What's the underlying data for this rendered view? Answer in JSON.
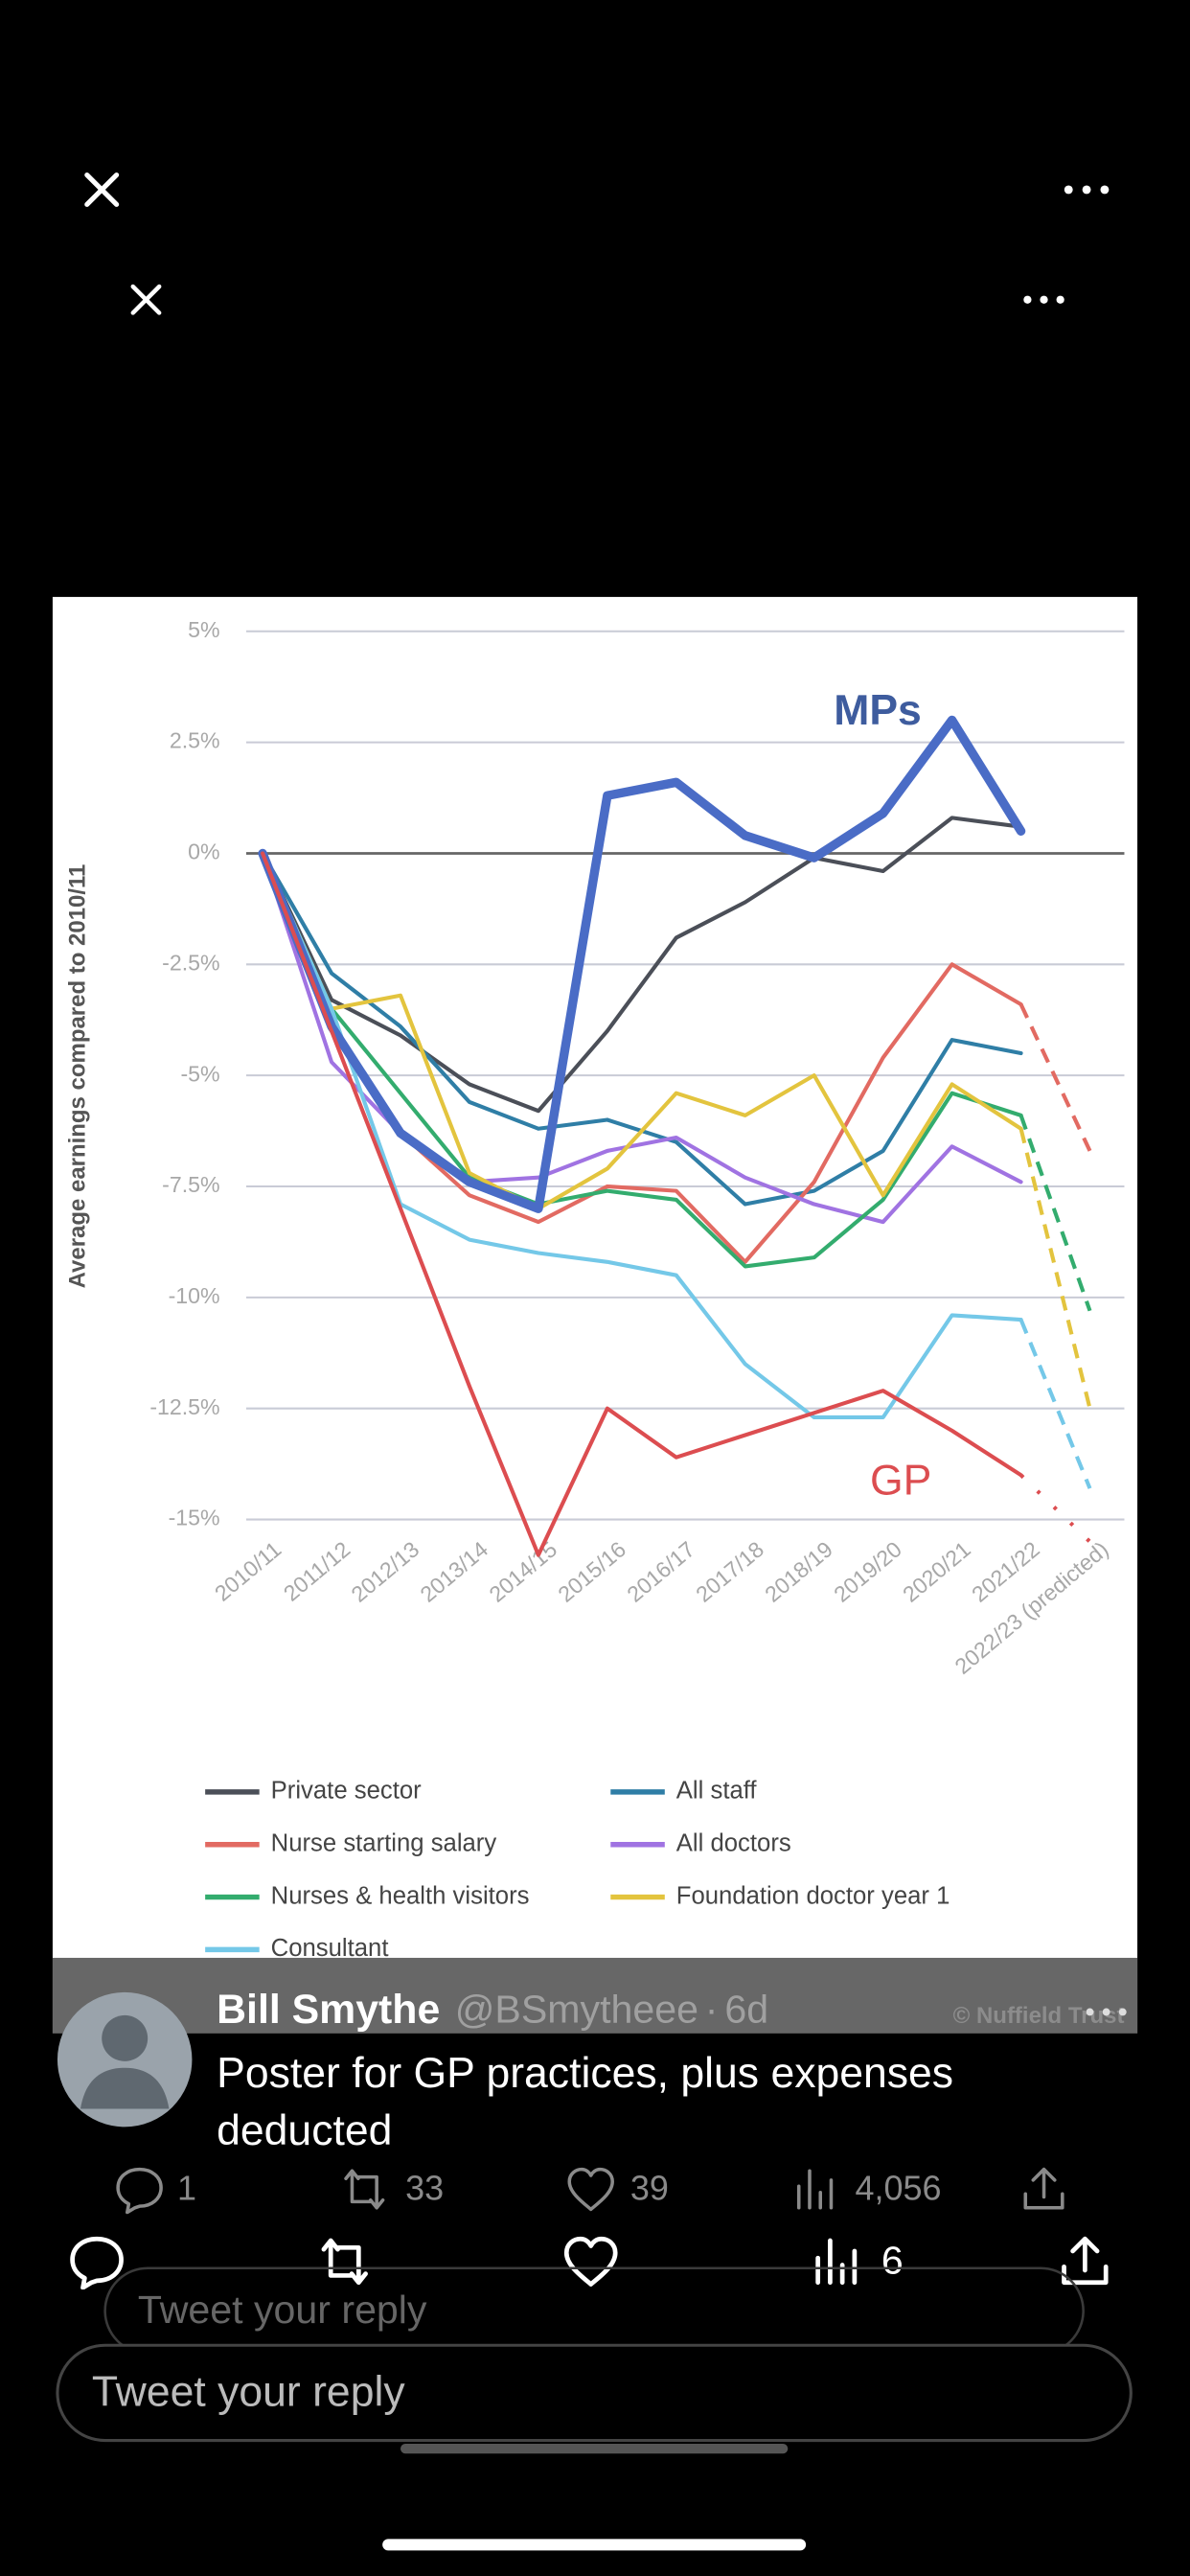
{
  "chart_data": {
    "type": "line",
    "y_axis_label": "Average earnings compared to 2010/11",
    "categories": [
      "2010/11",
      "2011/12",
      "2012/13",
      "2013/14",
      "2014/15",
      "2015/16",
      "2016/17",
      "2017/18",
      "2018/19",
      "2019/20",
      "2020/21",
      "2021/22",
      "2022/23 (predicted)"
    ],
    "ylim": [
      -15,
      5
    ],
    "yticks": [
      {
        "value": 5,
        "label": "5%"
      },
      {
        "value": 2.5,
        "label": "2.5%"
      },
      {
        "value": 0,
        "label": "0%"
      },
      {
        "value": -2.5,
        "label": "-2.5%"
      },
      {
        "value": -5,
        "label": "-5%"
      },
      {
        "value": -7.5,
        "label": "-7.5%"
      },
      {
        "value": -10,
        "label": "-10%"
      },
      {
        "value": -12.5,
        "label": "-12.5%"
      },
      {
        "value": -15,
        "label": "-15%"
      }
    ],
    "grid": true,
    "dashed_last_segment": true,
    "series": [
      {
        "name": "Private sector",
        "color": "#4b4f58",
        "values": [
          0,
          -3.3,
          -4.1,
          -5.2,
          -5.8,
          -4.0,
          -1.9,
          -1.1,
          -0.1,
          -0.4,
          0.8,
          0.6,
          null
        ]
      },
      {
        "name": "All staff",
        "color": "#2f7ea6",
        "values": [
          0,
          -2.7,
          -3.9,
          -5.6,
          -6.2,
          -6.0,
          -6.5,
          -7.9,
          -7.6,
          -6.7,
          -4.2,
          -4.5,
          null
        ]
      },
      {
        "name": "Nurse starting salary",
        "color": "#e26a62",
        "values": [
          0,
          -3.8,
          -6.3,
          -7.7,
          -8.3,
          -7.5,
          -7.6,
          -9.2,
          -7.4,
          -4.6,
          -2.5,
          -3.4,
          -6.7
        ]
      },
      {
        "name": "All doctors",
        "color": "#a073e2",
        "values": [
          0,
          -4.7,
          -6.3,
          -7.4,
          -7.3,
          -6.7,
          -6.4,
          -7.3,
          -7.9,
          -8.3,
          -6.6,
          -7.4,
          null
        ]
      },
      {
        "name": "Nurses & health visitors",
        "color": "#33ac6e",
        "values": [
          0,
          -3.5,
          -5.4,
          -7.3,
          -7.9,
          -7.6,
          -7.8,
          -9.3,
          -9.1,
          -7.8,
          -5.4,
          -5.9,
          -10.3
        ]
      },
      {
        "name": "Foundation doctor year 1",
        "color": "#e3c43e",
        "values": [
          0,
          -3.5,
          -3.2,
          -7.2,
          -8.0,
          -7.1,
          -5.4,
          -5.9,
          -5.0,
          -7.7,
          -5.2,
          -6.2,
          -12.5
        ]
      },
      {
        "name": "Consultant",
        "color": "#74c8e8",
        "values": [
          0,
          -3.5,
          -7.9,
          -8.7,
          -9.0,
          -9.2,
          -9.5,
          -11.5,
          -12.7,
          -12.7,
          -10.4,
          -10.5,
          -14.3
        ]
      }
    ],
    "annotated_series": [
      {
        "name": "MPs",
        "color": "#4a6cc6",
        "values": [
          0,
          -3.9,
          -6.3,
          -7.4,
          -8.0,
          1.3,
          1.6,
          0.4,
          -0.1,
          0.9,
          3.0,
          0.5,
          null
        ]
      },
      {
        "name": "GP",
        "color": "#dc4d50",
        "values": [
          0,
          -4.0,
          -8.0,
          -12.0,
          -15.8,
          -12.5,
          -13.6,
          -13.1,
          -12.6,
          -12.1,
          -13.0,
          -14.0,
          -15.5
        ]
      }
    ],
    "source": "© Nuffield Trust"
  },
  "tweet": {
    "author": "Bill Smythe",
    "handle": "@BSmytheee",
    "time": "6d",
    "text_lines": [
      "Poster for GP practices, plus expenses",
      "deducted"
    ],
    "replies": 1,
    "retweets": 33,
    "likes": 39,
    "views": "4,056"
  },
  "overlay": {
    "views": 6,
    "reply_placeholder_back": "Tweet your reply",
    "reply_placeholder": "Tweet your reply"
  }
}
